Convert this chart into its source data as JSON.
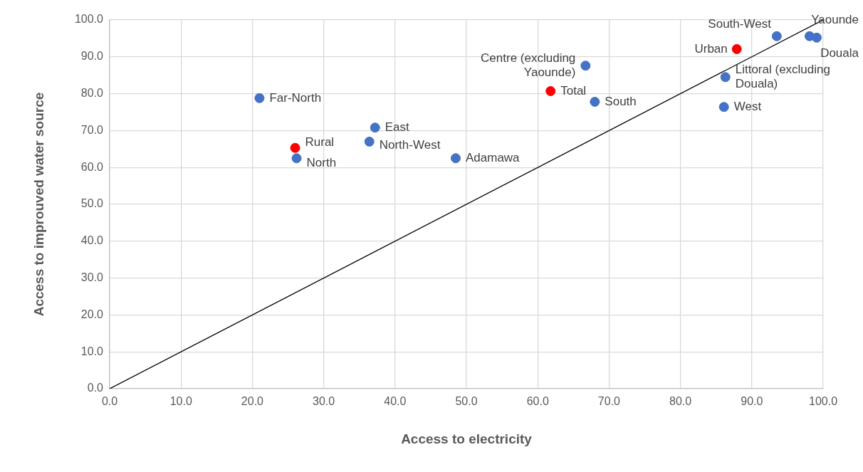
{
  "chart_data": {
    "type": "scatter",
    "xlabel": "Access to electricity",
    "ylabel": "Access to improuved water source",
    "xlim": [
      0,
      100
    ],
    "ylim": [
      0,
      100
    ],
    "xticks": [
      {
        "value": 0,
        "label": "0.0"
      },
      {
        "value": 10,
        "label": "10.0"
      },
      {
        "value": 20,
        "label": "20.0"
      },
      {
        "value": 30,
        "label": "30.0"
      },
      {
        "value": 40,
        "label": "40.0"
      },
      {
        "value": 50,
        "label": "50.0"
      },
      {
        "value": 60,
        "label": "60.0"
      },
      {
        "value": 70,
        "label": "70.0"
      },
      {
        "value": 80,
        "label": "80.0"
      },
      {
        "value": 90,
        "label": "90.0"
      },
      {
        "value": 100,
        "label": "100.0"
      }
    ],
    "yticks": [
      {
        "value": 0,
        "label": "0.0"
      },
      {
        "value": 10,
        "label": "10.0"
      },
      {
        "value": 20,
        "label": "20.0"
      },
      {
        "value": 30,
        "label": "30.0"
      },
      {
        "value": 40,
        "label": "40.0"
      },
      {
        "value": 50,
        "label": "50.0"
      },
      {
        "value": 60,
        "label": "60.0"
      },
      {
        "value": 70,
        "label": "70.0"
      },
      {
        "value": 80,
        "label": "80.0"
      },
      {
        "value": 90,
        "label": "90.0"
      },
      {
        "value": 100,
        "label": "100.0"
      }
    ],
    "grid": true,
    "legend": false,
    "marker": "circle",
    "line_style": "solid",
    "series": [
      {
        "name": "Far-North",
        "color": "#4472c4",
        "x": [
          21.0
        ],
        "values": [
          78.8
        ]
      },
      {
        "name": "Rural",
        "color": "#ff0000",
        "x": [
          26.0
        ],
        "values": [
          65.3
        ]
      },
      {
        "name": "North",
        "color": "#4472c4",
        "x": [
          26.2
        ],
        "values": [
          62.5
        ]
      },
      {
        "name": "East",
        "color": "#4472c4",
        "x": [
          37.2
        ],
        "values": [
          70.8
        ]
      },
      {
        "name": "North-West",
        "color": "#4472c4",
        "x": [
          36.4
        ],
        "values": [
          67.0
        ]
      },
      {
        "name": "Adamawa",
        "color": "#4472c4",
        "x": [
          48.5
        ],
        "values": [
          62.5
        ]
      },
      {
        "name": "Total",
        "color": "#ff0000",
        "x": [
          61.8
        ],
        "values": [
          80.7
        ]
      },
      {
        "name": "Centre (excluding Yaounde)",
        "color": "#4472c4",
        "x": [
          66.7
        ],
        "values": [
          87.6
        ]
      },
      {
        "name": "South",
        "color": "#4472c4",
        "x": [
          68.0
        ],
        "values": [
          77.8
        ]
      },
      {
        "name": "West",
        "color": "#4472c4",
        "x": [
          86.1
        ],
        "values": [
          76.4
        ]
      },
      {
        "name": "Littoral (excluding Douala)",
        "color": "#4472c4",
        "x": [
          86.3
        ],
        "values": [
          84.5
        ]
      },
      {
        "name": "Urban",
        "color": "#ff0000",
        "x": [
          87.9
        ],
        "values": [
          92.1
        ]
      },
      {
        "name": "South-West",
        "color": "#4472c4",
        "x": [
          93.5
        ],
        "values": [
          95.6
        ]
      },
      {
        "name": "Yaounde",
        "color": "#4472c4",
        "x": [
          98.1
        ],
        "values": [
          95.6
        ]
      },
      {
        "name": "Douala",
        "color": "#4472c4",
        "x": [
          99.1
        ],
        "values": [
          95.2
        ]
      },
      {
        "type": "line",
        "marker": "none",
        "color": "#000000",
        "x": [
          0,
          100
        ],
        "values": [
          0,
          100
        ]
      }
    ]
  }
}
